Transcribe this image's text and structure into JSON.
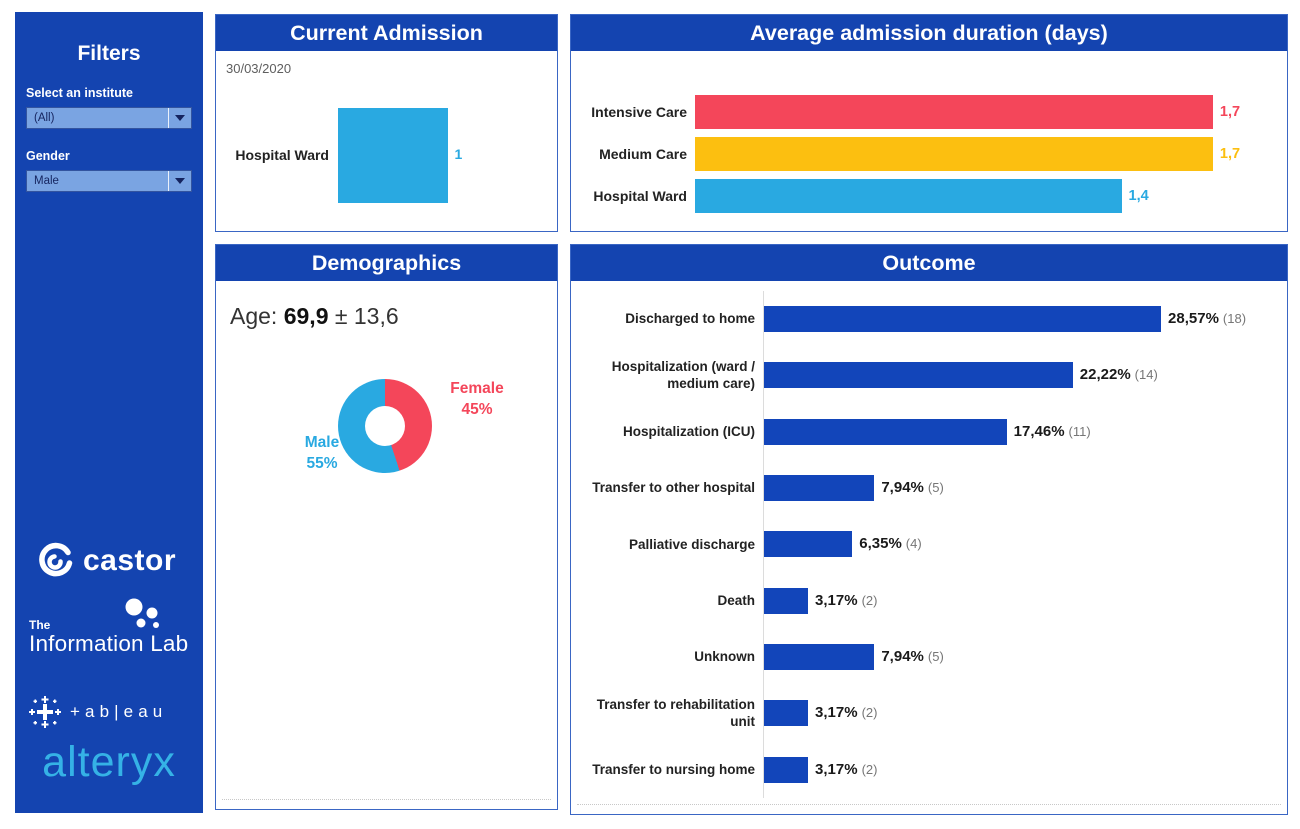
{
  "sidebar": {
    "title": "Filters",
    "filters": [
      {
        "label": "Select an institute",
        "value": "(All)"
      },
      {
        "label": "Gender",
        "value": "Male"
      }
    ],
    "logos": [
      {
        "name": "castor",
        "text": "castor"
      },
      {
        "name": "the-information-lab",
        "text_top": "The",
        "text": "Information Lab"
      },
      {
        "name": "tableau",
        "text": "+ab|eau"
      },
      {
        "name": "alteryx",
        "text": "alteryx"
      }
    ]
  },
  "panels": {
    "current_admission": {
      "title": "Current Admission",
      "date": "30/03/2020"
    },
    "avg_duration": {
      "title": "Average admission duration (days)"
    },
    "demographics": {
      "title": "Demographics",
      "age_label": "Age:",
      "age_mean": "69,9",
      "age_sd": "± 13,6"
    },
    "outcome": {
      "title": "Outcome"
    }
  },
  "colors": {
    "primary_blue": "#1444b0",
    "bar_blue": "#1245ba",
    "cyan": "#29a9e1",
    "red": "#f4465a",
    "yellow": "#fcbf10",
    "count_gray": "#767676",
    "alteryx_cyan": "#35b2e6",
    "dropdown_fill": "#7aa4e2"
  },
  "chart_data": [
    {
      "id": "current_admission",
      "type": "bar",
      "orientation": "horizontal",
      "title": "Current Admission",
      "annotation": "30/03/2020",
      "categories": [
        "Hospital Ward"
      ],
      "values": [
        1
      ],
      "value_labels": [
        "1"
      ],
      "bar_colors": [
        "#29a9e1"
      ],
      "value_label_colors": [
        "#29a9e1"
      ],
      "xlabel": "",
      "ylabel": "",
      "xlim": [
        0,
        2
      ],
      "grid": false,
      "legend": false
    },
    {
      "id": "avg_admission_duration",
      "type": "bar",
      "orientation": "horizontal",
      "title": "Average admission duration (days)",
      "categories": [
        "Intensive Care",
        "Medium Care",
        "Hospital Ward"
      ],
      "values": [
        1.7,
        1.7,
        1.4
      ],
      "value_labels": [
        "1,7",
        "1,7",
        "1,4"
      ],
      "bar_colors": [
        "#f4465a",
        "#fcbf10",
        "#29a9e1"
      ],
      "value_label_colors": [
        "#f4465a",
        "#fcbf10",
        "#29a9e1"
      ],
      "xlabel": "",
      "ylabel": "",
      "xlim": [
        0,
        1.93
      ],
      "grid": false,
      "legend": false
    },
    {
      "id": "demographics_gender",
      "type": "pie",
      "donut": true,
      "title": "Demographics",
      "subtitle": "Age: 69,9 ± 13,6",
      "labels": [
        "Female",
        "Male"
      ],
      "values": [
        45,
        55
      ],
      "value_labels": [
        "45%",
        "55%"
      ],
      "colors": [
        "#f4465a",
        "#29a9e1"
      ],
      "start_angle_deg": 0,
      "direction": "clockwise",
      "legend": false
    },
    {
      "id": "outcome",
      "type": "bar",
      "orientation": "horizontal",
      "title": "Outcome",
      "categories": [
        "Discharged to home",
        "Hospitalization (ward /\nmedium care)",
        "Hospitalization (ICU)",
        "Transfer to other hospital",
        "Palliative discharge",
        "Death",
        "Unknown",
        "Transfer to rehabilitation\nunit",
        "Transfer to nursing home"
      ],
      "values": [
        28.57,
        22.22,
        17.46,
        7.94,
        6.35,
        3.17,
        7.94,
        3.17,
        3.17
      ],
      "counts": [
        18,
        14,
        11,
        5,
        4,
        2,
        5,
        2,
        2
      ],
      "value_labels": [
        "28,57%",
        "22,22%",
        "17,46%",
        "7,94%",
        "6,35%",
        "3,17%",
        "7,94%",
        "3,17%",
        "3,17%"
      ],
      "count_labels": [
        "(18)",
        "(14)",
        "(11)",
        "(5)",
        "(4)",
        "(2)",
        "(5)",
        "(2)",
        "(2)"
      ],
      "bar_color": "#1245ba",
      "xlabel": "",
      "ylabel": "",
      "xlim": [
        0,
        37.2
      ],
      "grid": false,
      "legend": false
    }
  ]
}
